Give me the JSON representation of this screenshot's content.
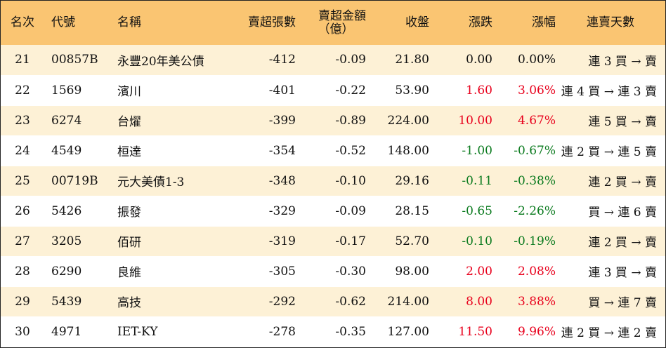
{
  "headers": {
    "rank": "名次",
    "code": "代號",
    "name": "名稱",
    "sheets": "賣超張數",
    "amount_line1": "賣超金額",
    "amount_line2": "（億）",
    "close": "收盤",
    "change": "漲跌",
    "pct": "漲幅",
    "days": "連賣天數"
  },
  "colors": {
    "header_bg": "#fac572",
    "odd_row_bg": "#fdf1d6",
    "up": "#e8001c",
    "down": "#0a7a1e"
  },
  "rows": [
    {
      "rank": "21",
      "code": "00857B",
      "name": "永豐20年美公債",
      "sheets": "-412",
      "amount": "-0.09",
      "close": "21.80",
      "change": "0.00",
      "pct": "0.00%",
      "dir": "flat",
      "days": "連 3 買 → 賣"
    },
    {
      "rank": "22",
      "code": "1569",
      "name": "濱川",
      "sheets": "-401",
      "amount": "-0.22",
      "close": "53.90",
      "change": "1.60",
      "pct": "3.06%",
      "dir": "up",
      "days": "連 4 買 → 連 3 賣"
    },
    {
      "rank": "23",
      "code": "6274",
      "name": "台燿",
      "sheets": "-399",
      "amount": "-0.89",
      "close": "224.00",
      "change": "10.00",
      "pct": "4.67%",
      "dir": "up",
      "days": "連 5 買 → 賣"
    },
    {
      "rank": "24",
      "code": "4549",
      "name": "桓達",
      "sheets": "-354",
      "amount": "-0.52",
      "close": "148.00",
      "change": "-1.00",
      "pct": "-0.67%",
      "dir": "down",
      "days": "連 2 買 → 連 5 賣"
    },
    {
      "rank": "25",
      "code": "00719B",
      "name": "元大美債1-3",
      "sheets": "-348",
      "amount": "-0.10",
      "close": "29.16",
      "change": "-0.11",
      "pct": "-0.38%",
      "dir": "down",
      "days": "連 2 買 → 賣"
    },
    {
      "rank": "26",
      "code": "5426",
      "name": "振發",
      "sheets": "-329",
      "amount": "-0.09",
      "close": "28.15",
      "change": "-0.65",
      "pct": "-2.26%",
      "dir": "down",
      "days": "買 → 連 6 賣"
    },
    {
      "rank": "27",
      "code": "3205",
      "name": "佰研",
      "sheets": "-319",
      "amount": "-0.17",
      "close": "52.70",
      "change": "-0.10",
      "pct": "-0.19%",
      "dir": "down",
      "days": "連 2 買 → 賣"
    },
    {
      "rank": "28",
      "code": "6290",
      "name": "良維",
      "sheets": "-305",
      "amount": "-0.30",
      "close": "98.00",
      "change": "2.00",
      "pct": "2.08%",
      "dir": "up",
      "days": "連 3 買 → 賣"
    },
    {
      "rank": "29",
      "code": "5439",
      "name": "高技",
      "sheets": "-292",
      "amount": "-0.62",
      "close": "214.00",
      "change": "8.00",
      "pct": "3.88%",
      "dir": "up",
      "days": "買 → 連 7 賣"
    },
    {
      "rank": "30",
      "code": "4971",
      "name": "IET-KY",
      "sheets": "-278",
      "amount": "-0.35",
      "close": "127.00",
      "change": "11.50",
      "pct": "9.96%",
      "dir": "up",
      "days": "連 2 買 → 連 2 賣"
    }
  ]
}
